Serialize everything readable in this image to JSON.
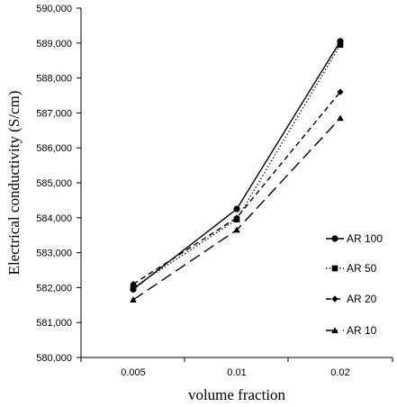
{
  "chart_data": {
    "type": "line",
    "title": "",
    "xlabel": "volume fraction",
    "ylabel": "Electrical conductivity (S/cm)",
    "categories": [
      "0.005",
      "0.01",
      "0.02"
    ],
    "ylim": [
      580000,
      590000
    ],
    "yticks": [
      "580,000",
      "581,000",
      "582,000",
      "583,000",
      "584,000",
      "585,000",
      "586,000",
      "587,000",
      "588,000",
      "589,000",
      "590,000"
    ],
    "grid": false,
    "legend_position": "right",
    "series": [
      {
        "name": "AR 100",
        "marker": "circle",
        "dash": "solid",
        "values": [
          581950,
          584250,
          589050
        ]
      },
      {
        "name": "AR 50",
        "marker": "square",
        "dash": "dotted",
        "values": [
          582000,
          583950,
          588950
        ]
      },
      {
        "name": "AR 20",
        "marker": "diamond",
        "dash": "dashed",
        "values": [
          582100,
          584000,
          587600
        ]
      },
      {
        "name": "AR 10",
        "marker": "triangle",
        "dash": "longdash",
        "values": [
          581650,
          583650,
          586850
        ]
      }
    ]
  }
}
